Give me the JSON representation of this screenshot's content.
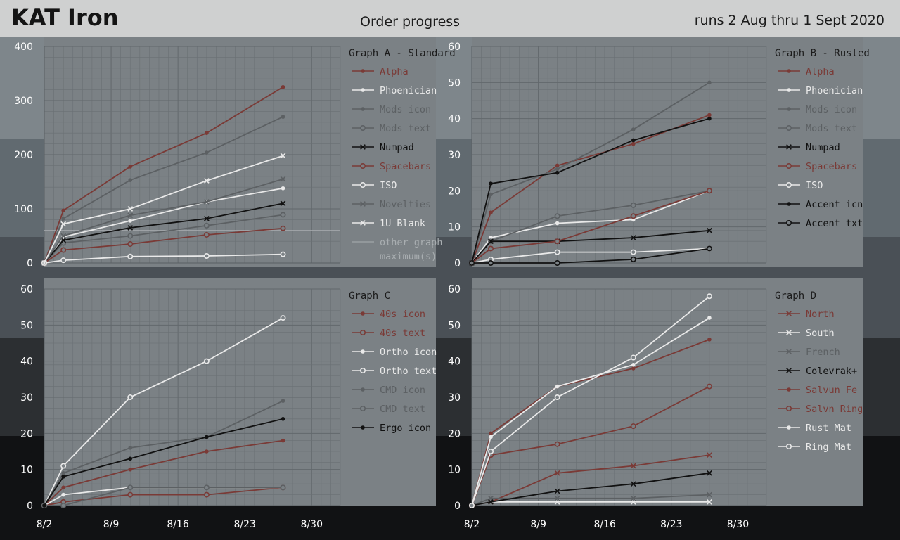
{
  "header": {
    "brand": "KAT Iron",
    "title": "Order progress",
    "dates": "runs 2 Aug thru 1 Sept 2020"
  },
  "colors": {
    "red": "#7a3a36",
    "white": "#e9e9e9",
    "grey": "#5c6063",
    "black": "#111111",
    "plot_bg": "#7b8185",
    "grid": "#6a7074"
  },
  "chart_data": [
    {
      "id": "A",
      "type": "line",
      "title": "Graph A - Standard",
      "x_ticks": [
        "8/2",
        "8/9",
        "8/16",
        "8/23",
        "8/30"
      ],
      "x_tick_values": [
        0,
        7,
        14,
        21,
        28
      ],
      "x_labels_shown": false,
      "ylim": [
        0,
        400
      ],
      "y_ticks": [
        0,
        100,
        200,
        300,
        400
      ],
      "reference_line": {
        "name": "other graph maximum(s)",
        "y": 60
      },
      "series": [
        {
          "name": "Alpha",
          "color": "red",
          "marker": "dot",
          "x": [
            0,
            2,
            9,
            17,
            25
          ],
          "values": [
            0,
            97,
            178,
            240,
            325
          ]
        },
        {
          "name": "Phoenician",
          "color": "white",
          "marker": "dot",
          "x": [
            0,
            2,
            9,
            17,
            25
          ],
          "values": [
            0,
            48,
            78,
            113,
            138
          ]
        },
        {
          "name": "Mods icon",
          "color": "grey",
          "marker": "dot",
          "x": [
            0,
            2,
            9,
            17,
            25
          ],
          "values": [
            0,
            82,
            153,
            204,
            270
          ]
        },
        {
          "name": "Mods text",
          "color": "grey",
          "marker": "circle",
          "x": [
            0,
            2,
            9,
            17,
            25
          ],
          "values": [
            0,
            37,
            50,
            69,
            89
          ]
        },
        {
          "name": "Numpad",
          "color": "black",
          "marker": "x",
          "x": [
            0,
            2,
            9,
            17,
            25
          ],
          "values": [
            0,
            42,
            65,
            82,
            110
          ]
        },
        {
          "name": "Spacebars",
          "color": "red",
          "marker": "circle",
          "x": [
            0,
            2,
            9,
            17,
            25
          ],
          "values": [
            0,
            24,
            35,
            52,
            64
          ]
        },
        {
          "name": "ISO",
          "color": "white",
          "marker": "circle",
          "x": [
            0,
            2,
            9,
            17,
            25
          ],
          "values": [
            0,
            5,
            12,
            13,
            16
          ]
        },
        {
          "name": "Novelties",
          "color": "grey",
          "marker": "x",
          "x": [
            0,
            2,
            9,
            17,
            25
          ],
          "values": [
            0,
            50,
            88,
            113,
            155
          ]
        },
        {
          "name": "1U Blank",
          "color": "white",
          "marker": "x",
          "x": [
            0,
            2,
            9,
            17,
            25
          ],
          "values": [
            0,
            72,
            100,
            152,
            198
          ]
        }
      ],
      "legend_extra": [
        "other graph",
        "maximum(s)"
      ]
    },
    {
      "id": "B",
      "type": "line",
      "title": "Graph B - Rusted",
      "x_ticks": [
        "8/2",
        "8/9",
        "8/16",
        "8/23",
        "8/30"
      ],
      "x_tick_values": [
        0,
        7,
        14,
        21,
        28
      ],
      "x_labels_shown": false,
      "ylim": [
        0,
        60
      ],
      "y_ticks": [
        0,
        10,
        20,
        30,
        40,
        50,
        60
      ],
      "series": [
        {
          "name": "Alpha",
          "color": "red",
          "marker": "dot",
          "x": [
            0,
            2,
            9,
            17,
            25
          ],
          "values": [
            0,
            14,
            27,
            33,
            41
          ]
        },
        {
          "name": "Phoenician",
          "color": "white",
          "marker": "dot",
          "x": [
            0,
            2,
            9,
            17,
            25
          ],
          "values": [
            0,
            7,
            11,
            12,
            20
          ]
        },
        {
          "name": "Mods icon",
          "color": "grey",
          "marker": "dot",
          "x": [
            0,
            2,
            9,
            17,
            25
          ],
          "values": [
            0,
            19,
            26,
            37,
            50
          ]
        },
        {
          "name": "Mods text",
          "color": "grey",
          "marker": "circle",
          "x": [
            0,
            2,
            9,
            17,
            25
          ],
          "values": [
            0,
            6,
            13,
            16,
            20
          ]
        },
        {
          "name": "Numpad",
          "color": "black",
          "marker": "x",
          "x": [
            0,
            2,
            9,
            17,
            25
          ],
          "values": [
            0,
            6,
            6,
            7,
            9
          ]
        },
        {
          "name": "Spacebars",
          "color": "red",
          "marker": "circle",
          "x": [
            0,
            2,
            9,
            17,
            25
          ],
          "values": [
            0,
            4,
            6,
            13,
            20
          ]
        },
        {
          "name": "ISO",
          "color": "white",
          "marker": "circle",
          "x": [
            0,
            2,
            9,
            17,
            25
          ],
          "values": [
            0,
            1,
            3,
            3,
            4
          ]
        },
        {
          "name": "Accent icn",
          "color": "black",
          "marker": "dot",
          "x": [
            0,
            2,
            9,
            17,
            25
          ],
          "values": [
            0,
            22,
            25,
            34,
            40
          ]
        },
        {
          "name": "Accent txt",
          "color": "black",
          "marker": "circle",
          "x": [
            0,
            2,
            9,
            17,
            25
          ],
          "values": [
            0,
            0,
            0,
            1,
            4
          ]
        }
      ]
    },
    {
      "id": "C",
      "type": "line",
      "title": "Graph C",
      "x_ticks": [
        "8/2",
        "8/9",
        "8/16",
        "8/23",
        "8/30"
      ],
      "x_tick_values": [
        0,
        7,
        14,
        21,
        28
      ],
      "x_labels_shown": true,
      "ylim": [
        0,
        60
      ],
      "y_ticks": [
        0,
        10,
        20,
        30,
        40,
        50,
        60
      ],
      "series": [
        {
          "name": "40s icon",
          "color": "red",
          "marker": "dot",
          "x": [
            0,
            2,
            9,
            17,
            25
          ],
          "values": [
            0,
            5,
            10,
            15,
            18
          ]
        },
        {
          "name": "40s text",
          "color": "red",
          "marker": "circle",
          "x": [
            0,
            2,
            9,
            17,
            25
          ],
          "values": [
            0,
            1,
            3,
            3,
            5
          ]
        },
        {
          "name": "Ortho icon",
          "color": "white",
          "marker": "dot",
          "x": [
            0,
            2,
            9,
            17,
            25
          ],
          "values": [
            0,
            3,
            5,
            5,
            5
          ]
        },
        {
          "name": "Ortho text",
          "color": "white",
          "marker": "circle",
          "x": [
            0,
            2,
            9,
            17,
            25
          ],
          "values": [
            0,
            11,
            30,
            40,
            52
          ]
        },
        {
          "name": "CMD icon",
          "color": "grey",
          "marker": "dot",
          "x": [
            0,
            2,
            9,
            17,
            25
          ],
          "values": [
            0,
            9,
            16,
            19,
            29
          ]
        },
        {
          "name": "CMD text",
          "color": "grey",
          "marker": "circle",
          "x": [
            0,
            2,
            9,
            17,
            25
          ],
          "values": [
            0,
            0,
            5,
            5,
            5
          ]
        },
        {
          "name": "Ergo icon",
          "color": "black",
          "marker": "dot",
          "x": [
            0,
            2,
            9,
            17,
            25
          ],
          "values": [
            0,
            8,
            13,
            19,
            24
          ]
        }
      ]
    },
    {
      "id": "D",
      "type": "line",
      "title": "Graph D",
      "x_ticks": [
        "8/2",
        "8/9",
        "8/16",
        "8/23",
        "8/30"
      ],
      "x_tick_values": [
        0,
        7,
        14,
        21,
        28
      ],
      "x_labels_shown": true,
      "ylim": [
        0,
        60
      ],
      "y_ticks": [
        0,
        10,
        20,
        30,
        40,
        50,
        60
      ],
      "series": [
        {
          "name": "North",
          "color": "red",
          "marker": "x",
          "x": [
            0,
            2,
            9,
            17,
            25
          ],
          "values": [
            0,
            1,
            9,
            11,
            14
          ]
        },
        {
          "name": "South",
          "color": "white",
          "marker": "x",
          "x": [
            0,
            2,
            9,
            17,
            25
          ],
          "values": [
            0,
            1,
            1,
            1,
            1
          ]
        },
        {
          "name": "French",
          "color": "grey",
          "marker": "x",
          "x": [
            0,
            2,
            9,
            17,
            25
          ],
          "values": [
            0,
            2,
            2,
            2,
            3
          ]
        },
        {
          "name": "Colevrak+",
          "color": "black",
          "marker": "x",
          "x": [
            0,
            2,
            9,
            17,
            25
          ],
          "values": [
            0,
            1,
            4,
            6,
            9
          ]
        },
        {
          "name": "Salvun Fe",
          "color": "red",
          "marker": "dot",
          "x": [
            0,
            2,
            9,
            17,
            25
          ],
          "values": [
            0,
            20,
            33,
            38,
            46
          ]
        },
        {
          "name": "Salvn Ring",
          "color": "red",
          "marker": "circle",
          "x": [
            0,
            2,
            9,
            17,
            25
          ],
          "values": [
            0,
            14,
            17,
            22,
            33
          ]
        },
        {
          "name": "Rust Mat",
          "color": "white",
          "marker": "dot",
          "x": [
            0,
            2,
            9,
            17,
            25
          ],
          "values": [
            0,
            19,
            33,
            39,
            52
          ]
        },
        {
          "name": "Ring Mat",
          "color": "white",
          "marker": "circle",
          "x": [
            0,
            2,
            9,
            17,
            25
          ],
          "values": [
            0,
            15,
            30,
            41,
            58
          ]
        }
      ]
    }
  ]
}
